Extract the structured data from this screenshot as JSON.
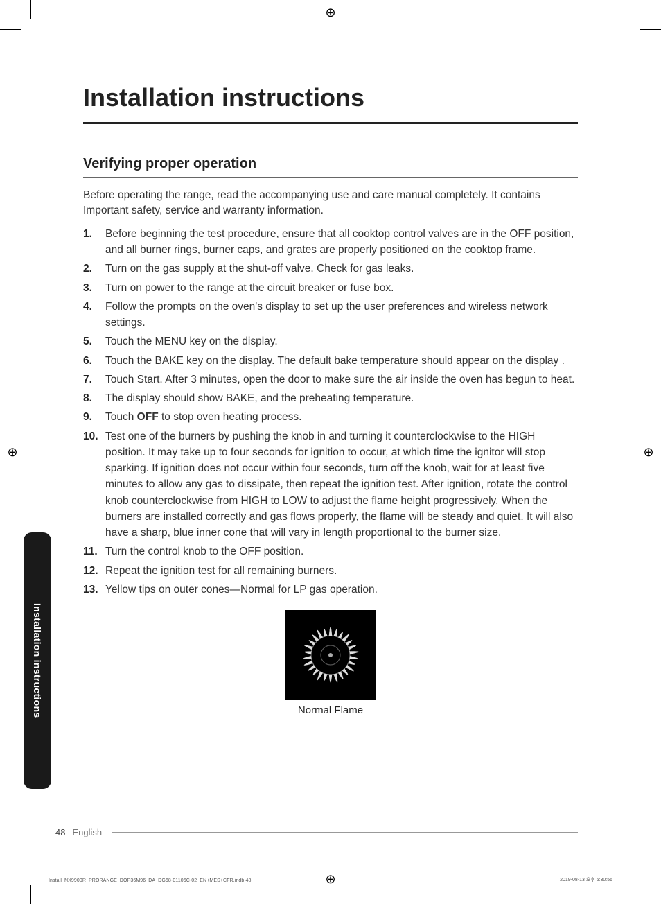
{
  "title": "Installation instructions",
  "subtitle": "Verifying proper operation",
  "intro": "Before operating the range, read the accompanying use and care manual completely. It contains Important safety, service and warranty information.",
  "steps": [
    "Before beginning the test procedure, ensure that all cooktop control valves are in the OFF position, and all burner rings, burner caps, and grates are properly positioned on the cooktop frame.",
    "Turn on the gas supply at the shut-off valve. Check for gas leaks.",
    "Turn on power to the range at the circuit breaker or fuse box.",
    "Follow the prompts on the oven's display to set up the user preferences and wireless network settings.",
    "Touch the MENU key on the display.",
    "Touch the BAKE key on the display. The default bake temperature should appear on the display .",
    "Touch Start. After 3 minutes, open the door to make sure the air inside the oven has begun to heat.",
    "The display should show BAKE, and the preheating temperature.",
    "",
    "Test one of the burners by pushing the knob in and turning it counterclockwise to the HIGH position. It may take up to four seconds for ignition to occur, at which time the ignitor will stop sparking. If ignition does not occur within four seconds, turn off the knob, wait for at least five minutes to allow any gas to dissipate, then repeat the ignition test. After ignition, rotate the control knob counterclockwise from HIGH to LOW to adjust the flame height progressively. When the burners are installed correctly and gas flows properly, the flame will be steady and quiet. It will also have a sharp, blue inner cone that will vary in length proportional to the burner size.",
    "Turn the control knob to the OFF position.",
    "Repeat the ignition test for all remaining burners.",
    "Yellow tips on outer cones—Normal for LP gas operation."
  ],
  "step9_prefix": "Touch ",
  "step9_bold": "OFF",
  "step9_suffix": " to stop oven heating process.",
  "figure_caption": "Normal Flame",
  "side_tab": "Installation instructions",
  "footer": {
    "page_number": "48",
    "language": "English"
  },
  "imprint": {
    "left": "Install_NX9900R_PRORANGE_DOP36M96_DA_DG68-01106C-02_EN+MES+CFR.indb   48",
    "right": "2019-08-13   오후 6:30:56"
  },
  "colors": {
    "text": "#2a2a2a",
    "rule": "#222222",
    "sidebar_bg": "#1a1a1a",
    "sidebar_text": "#ffffff",
    "flame": "#dddddd",
    "burner_bg": "#000000"
  },
  "typography": {
    "title_pt": 36,
    "subtitle_pt": 20,
    "body_pt": 15.5,
    "caption_pt": 15,
    "sidebar_pt": 14,
    "footer_pt": 13,
    "imprint_pt": 7
  }
}
